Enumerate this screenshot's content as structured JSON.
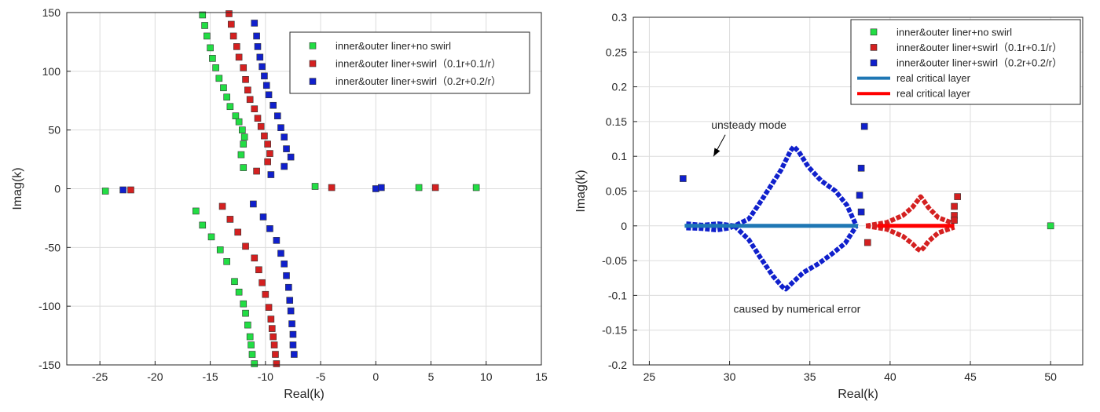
{
  "chart_data": [
    {
      "type": "scatter",
      "xlabel": "Real(k)",
      "ylabel": "Imag(k)",
      "xlim": [
        -28,
        15
      ],
      "ylim": [
        -150,
        150
      ],
      "xticks": [
        -25,
        -20,
        -15,
        -10,
        -5,
        0,
        5,
        10,
        15
      ],
      "yticks": [
        -150,
        -100,
        -50,
        0,
        50,
        100,
        150
      ],
      "grid": true,
      "legend_position": "top-right",
      "series": [
        {
          "name": "inner&outer liner+no swirl",
          "color": "#22dd44",
          "points": [
            [
              -15.7,
              148
            ],
            [
              -15.5,
              139
            ],
            [
              -15.3,
              130
            ],
            [
              -15.0,
              120
            ],
            [
              -14.8,
              111
            ],
            [
              -14.5,
              103
            ],
            [
              -14.2,
              94
            ],
            [
              -13.8,
              86
            ],
            [
              -13.5,
              78
            ],
            [
              -13.2,
              70
            ],
            [
              -12.7,
              62
            ],
            [
              -12.4,
              57
            ],
            [
              -12.1,
              50
            ],
            [
              -11.9,
              44
            ],
            [
              -12.0,
              38
            ],
            [
              -12.2,
              29
            ],
            [
              -12.0,
              18
            ],
            [
              -24.5,
              -2
            ],
            [
              -5.5,
              2
            ],
            [
              3.9,
              1
            ],
            [
              9.1,
              1
            ],
            [
              -16.3,
              -19
            ],
            [
              -15.7,
              -31
            ],
            [
              -14.9,
              -41
            ],
            [
              -14.1,
              -52
            ],
            [
              -13.5,
              -62
            ],
            [
              -12.8,
              -79
            ],
            [
              -12.4,
              -88
            ],
            [
              -12.0,
              -98
            ],
            [
              -11.8,
              -106
            ],
            [
              -11.6,
              -116
            ],
            [
              -11.4,
              -126
            ],
            [
              -11.3,
              -133
            ],
            [
              -11.2,
              -141
            ],
            [
              -11.0,
              -149
            ]
          ]
        },
        {
          "name": "inner&outer liner+swirl（0.1r+0.1/r）",
          "color": "#d42020",
          "points": [
            [
              -13.3,
              149
            ],
            [
              -13.1,
              140
            ],
            [
              -12.9,
              130
            ],
            [
              -12.6,
              121
            ],
            [
              -12.4,
              112
            ],
            [
              -12.0,
              103
            ],
            [
              -11.8,
              93
            ],
            [
              -11.6,
              84
            ],
            [
              -11.4,
              76
            ],
            [
              -11.0,
              68
            ],
            [
              -10.7,
              60
            ],
            [
              -10.4,
              53
            ],
            [
              -10.1,
              45
            ],
            [
              -9.8,
              38
            ],
            [
              -9.6,
              30
            ],
            [
              -9.8,
              23
            ],
            [
              -10.8,
              15
            ],
            [
              -22.2,
              -1
            ],
            [
              -4.0,
              1
            ],
            [
              5.4,
              1
            ],
            [
              -13.9,
              -15
            ],
            [
              -13.2,
              -26
            ],
            [
              -12.5,
              -37
            ],
            [
              -11.8,
              -49
            ],
            [
              -11.0,
              -59
            ],
            [
              -10.6,
              -69
            ],
            [
              -10.3,
              -80
            ],
            [
              -10.0,
              -90
            ],
            [
              -9.7,
              -101
            ],
            [
              -9.5,
              -111
            ],
            [
              -9.4,
              -119
            ],
            [
              -9.3,
              -126
            ],
            [
              -9.2,
              -133
            ],
            [
              -9.1,
              -141
            ],
            [
              -9.0,
              -149
            ]
          ]
        },
        {
          "name": "inner&outer liner+swirl（0.2r+0.2/r）",
          "color": "#1020cc",
          "points": [
            [
              -11.0,
              141
            ],
            [
              -10.8,
              130
            ],
            [
              -10.7,
              121
            ],
            [
              -10.5,
              112
            ],
            [
              -10.3,
              104
            ],
            [
              -10.1,
              96
            ],
            [
              -9.9,
              88
            ],
            [
              -9.7,
              80
            ],
            [
              -9.3,
              71
            ],
            [
              -8.9,
              62
            ],
            [
              -8.6,
              52
            ],
            [
              -8.3,
              44
            ],
            [
              -8.1,
              34
            ],
            [
              -7.7,
              27
            ],
            [
              -8.3,
              19
            ],
            [
              -9.5,
              12
            ],
            [
              -22.9,
              -1
            ],
            [
              0.0,
              0
            ],
            [
              0.5,
              1
            ],
            [
              -11.1,
              -13
            ],
            [
              -10.2,
              -24
            ],
            [
              -9.6,
              -34
            ],
            [
              -9.0,
              -44
            ],
            [
              -8.6,
              -55
            ],
            [
              -8.3,
              -64
            ],
            [
              -8.1,
              -74
            ],
            [
              -7.9,
              -84
            ],
            [
              -7.8,
              -95
            ],
            [
              -7.7,
              -104
            ],
            [
              -7.6,
              -115
            ],
            [
              -7.5,
              -124
            ],
            [
              -7.5,
              -133
            ],
            [
              -7.4,
              -141
            ]
          ]
        }
      ]
    },
    {
      "type": "scatter",
      "xlabel": "Real(k)",
      "ylabel": "Imag(k)",
      "xlim": [
        24,
        52
      ],
      "ylim": [
        -0.2,
        0.3
      ],
      "xticks": [
        25,
        30,
        35,
        40,
        45,
        50
      ],
      "yticks": [
        -0.2,
        -0.15,
        -0.1,
        -0.05,
        0,
        0.05,
        0.1,
        0.15,
        0.2,
        0.25,
        0.3
      ],
      "ytick_labels": [
        "-0.2",
        "-0.15",
        "-0.1",
        "-0.05",
        "0",
        "0.05",
        "0.1",
        "0.15",
        "0.2",
        "0.25",
        "0.3"
      ],
      "grid": true,
      "legend_position": "top-right",
      "series": [
        {
          "name": "inner&outer liner+no swirl",
          "color": "#22dd44",
          "points": [
            [
              50.0,
              0.0
            ]
          ]
        },
        {
          "name": "inner&outer liner+swirl（0.1r+0.1/r）",
          "color": "#d42020",
          "curves": [
            {
              "x": [
                38.5,
                39.8,
                40.8,
                41.4,
                41.7,
                41.9,
                42.1,
                42.4,
                43.0,
                44.0
              ],
              "y": [
                0.0,
                0.005,
                0.015,
                0.027,
                0.036,
                0.042,
                0.036,
                0.026,
                0.012,
                0.003
              ]
            },
            {
              "x": [
                38.5,
                39.8,
                40.8,
                41.4,
                41.7,
                41.9,
                42.1,
                42.4,
                43.0,
                44.0
              ],
              "y": [
                0.0,
                -0.005,
                -0.015,
                -0.026,
                -0.033,
                -0.036,
                -0.031,
                -0.022,
                -0.01,
                -0.002
              ]
            }
          ],
          "points": [
            [
              38.6,
              -0.024
            ],
            [
              44.2,
              0.042
            ],
            [
              44.0,
              0.028
            ],
            [
              44.0,
              0.015
            ],
            [
              44.0,
              0.008
            ]
          ]
        },
        {
          "name": "inner&outer liner+swirl（0.2r+0.2/r）",
          "color": "#1020cc",
          "curves": [
            {
              "x": [
                27.3,
                28.3,
                29.3,
                30.3,
                31.2,
                31.8,
                32.5,
                33.2,
                33.8,
                34.0,
                34.3,
                34.9,
                35.7,
                36.6,
                37.3,
                37.9
              ],
              "y": [
                0.003,
                0.001,
                0.003,
                0.0,
                0.01,
                0.03,
                0.055,
                0.08,
                0.108,
                0.114,
                0.107,
                0.085,
                0.065,
                0.05,
                0.03,
                0.0
              ]
            },
            {
              "x": [
                30.3,
                31.2,
                31.9,
                32.7,
                33.3,
                33.5,
                33.9,
                34.6,
                35.5,
                36.4,
                37.2,
                37.9
              ],
              "y": [
                0.0,
                -0.02,
                -0.045,
                -0.072,
                -0.088,
                -0.091,
                -0.082,
                -0.067,
                -0.055,
                -0.04,
                -0.025,
                0.0
              ]
            },
            {
              "x": [
                27.3,
                28.3,
                29.2,
                30.0,
                30.3
              ],
              "y": [
                -0.003,
                -0.004,
                -0.006,
                -0.003,
                0.0
              ]
            }
          ],
          "points": [
            [
              27.1,
              0.068
            ],
            [
              38.4,
              0.143
            ],
            [
              38.2,
              0.083
            ],
            [
              38.1,
              0.044
            ],
            [
              38.2,
              0.02
            ]
          ]
        },
        {
          "name": "real critical layer",
          "color": "#1f77b4",
          "line": {
            "x": [
              27.2,
              38.0
            ],
            "y": [
              0.0,
              0.0
            ]
          }
        },
        {
          "name": "real critical layer",
          "color": "#ff0000",
          "line": {
            "x": [
              39.2,
              44.0
            ],
            "y": [
              0.0,
              0.0
            ]
          }
        }
      ],
      "annotations": [
        {
          "text": "unsteady mode",
          "x": 31.2,
          "y": 0.14,
          "arrow_to": [
            29.0,
            0.1
          ]
        },
        {
          "text": "caused by numerical error",
          "x": 34.2,
          "y": -0.125
        }
      ]
    }
  ]
}
